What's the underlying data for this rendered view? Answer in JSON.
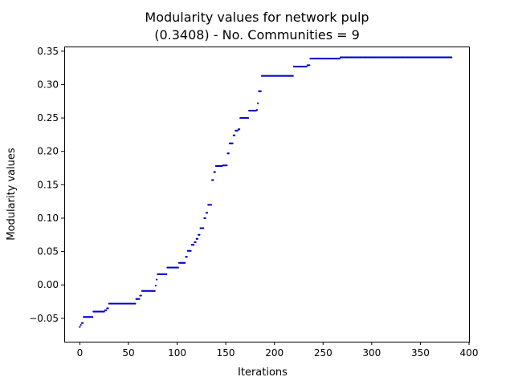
{
  "chart_data": {
    "type": "scatter",
    "title_line1": "Modularity values for network pulp",
    "title_line2": "(0.3408) - No. Communities = 9",
    "xlabel": "Iterations",
    "ylabel": "Modularity values",
    "xlim": [
      -16,
      400
    ],
    "ylim": [
      -0.085,
      0.357
    ],
    "xticks": [
      0,
      50,
      100,
      150,
      200,
      250,
      300,
      350,
      400
    ],
    "yticks": [
      -0.05,
      0.0,
      0.05,
      0.1,
      0.15,
      0.2,
      0.25,
      0.3,
      0.35
    ],
    "ytick_labels": [
      "−0.05",
      "0.00",
      "0.05",
      "0.10",
      "0.15",
      "0.20",
      "0.25",
      "0.30",
      "0.35"
    ],
    "grid": false,
    "marker_color": "#0000cc",
    "segments": [
      [
        0,
        0,
        -0.063
      ],
      [
        1,
        1,
        -0.06
      ],
      [
        2,
        3,
        -0.057
      ],
      [
        4,
        13,
        -0.048
      ],
      [
        14,
        25,
        -0.04
      ],
      [
        26,
        27,
        -0.038
      ],
      [
        28,
        29,
        -0.035
      ],
      [
        30,
        57,
        -0.028
      ],
      [
        58,
        61,
        -0.021
      ],
      [
        62,
        63,
        -0.016
      ],
      [
        64,
        77,
        -0.009
      ],
      [
        78,
        78,
        -0.001
      ],
      [
        79,
        79,
        0.008
      ],
      [
        80,
        89,
        0.016
      ],
      [
        90,
        101,
        0.026
      ],
      [
        102,
        108,
        0.033
      ],
      [
        109,
        110,
        0.042
      ],
      [
        111,
        114,
        0.051
      ],
      [
        115,
        117,
        0.06
      ],
      [
        118,
        119,
        0.064
      ],
      [
        120,
        121,
        0.069
      ],
      [
        122,
        123,
        0.075
      ],
      [
        124,
        127,
        0.085
      ],
      [
        128,
        129,
        0.1
      ],
      [
        130,
        131,
        0.108
      ],
      [
        132,
        135,
        0.12
      ],
      [
        136,
        137,
        0.157
      ],
      [
        138,
        139,
        0.169
      ],
      [
        140,
        146,
        0.178
      ],
      [
        147,
        151,
        0.179
      ],
      [
        152,
        153,
        0.197
      ],
      [
        154,
        157,
        0.212
      ],
      [
        158,
        159,
        0.224
      ],
      [
        160,
        162,
        0.231
      ],
      [
        163,
        164,
        0.233
      ],
      [
        165,
        173,
        0.25
      ],
      [
        174,
        181,
        0.261
      ],
      [
        182,
        182,
        0.262
      ],
      [
        183,
        183,
        0.272
      ],
      [
        184,
        186,
        0.29
      ],
      [
        187,
        219,
        0.313
      ],
      [
        220,
        233,
        0.327
      ],
      [
        234,
        236,
        0.329
      ],
      [
        237,
        267,
        0.339
      ],
      [
        268,
        382,
        0.3408
      ]
    ]
  }
}
